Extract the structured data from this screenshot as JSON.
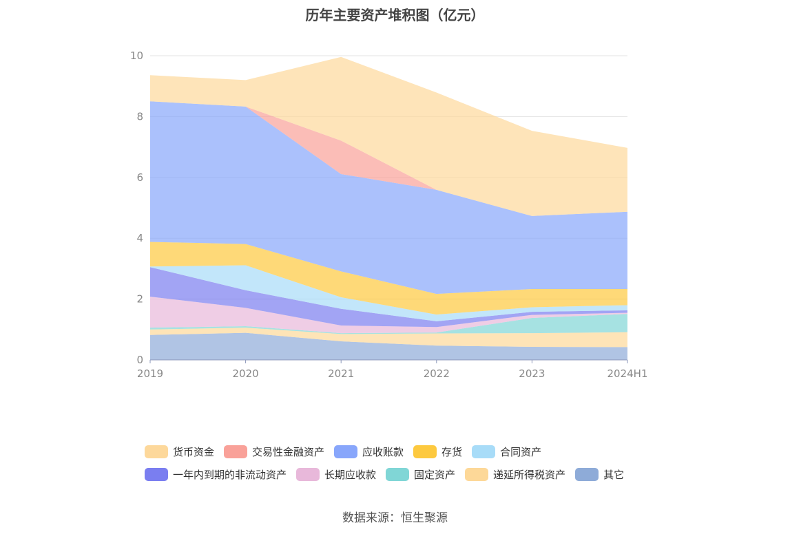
{
  "chart_data": {
    "type": "area",
    "stacked": true,
    "title": "历年主要资产堆积图（亿元）",
    "x": [
      "2019",
      "2020",
      "2021",
      "2022",
      "2023",
      "2024H1"
    ],
    "ylim": [
      0,
      10
    ],
    "yticks": [
      "0",
      "2",
      "4",
      "6",
      "8",
      "10"
    ],
    "grid": true,
    "legend_position": "bottom",
    "series": [
      {
        "name": "其它",
        "color": "#8eabd8",
        "values": [
          0.82,
          0.89,
          0.61,
          0.47,
          0.43,
          0.42
        ]
      },
      {
        "name": "递延所得税资产",
        "color": "#fdd898",
        "values": [
          0.18,
          0.17,
          0.24,
          0.4,
          0.45,
          0.49
        ]
      },
      {
        "name": "固定资产",
        "color": "#80d6d6",
        "values": [
          0.06,
          0.05,
          0.03,
          0.03,
          0.5,
          0.6
        ]
      },
      {
        "name": "长期应收款",
        "color": "#e8b8da",
        "values": [
          1.02,
          0.6,
          0.25,
          0.18,
          0.1,
          0.04
        ]
      },
      {
        "name": "一年内到期的非流动资产",
        "color": "#7a7ef0",
        "values": [
          0.97,
          0.58,
          0.55,
          0.19,
          0.1,
          0.08
        ]
      },
      {
        "name": "合同资产",
        "color": "#a8dcf8",
        "values": [
          0.02,
          0.82,
          0.38,
          0.22,
          0.15,
          0.17
        ]
      },
      {
        "name": "存货",
        "color": "#fdc93f",
        "values": [
          0.81,
          0.7,
          0.85,
          0.68,
          0.6,
          0.53
        ]
      },
      {
        "name": "应收账款",
        "color": "#88a6fb",
        "values": [
          4.62,
          4.52,
          3.2,
          3.42,
          2.4,
          2.54
        ]
      },
      {
        "name": "交易性金融资产",
        "color": "#f9a199",
        "values": [
          0.0,
          0.0,
          1.1,
          0.0,
          0.0,
          0.0
        ]
      },
      {
        "name": "货币资金",
        "color": "#fdd89b",
        "values": [
          0.86,
          0.87,
          2.75,
          3.2,
          2.8,
          2.1
        ]
      }
    ]
  },
  "legend": [
    {
      "label": "货币资金",
      "color": "#fdd89b"
    },
    {
      "label": "交易性金融资产",
      "color": "#f9a199"
    },
    {
      "label": "应收账款",
      "color": "#88a6fb"
    },
    {
      "label": "存货",
      "color": "#fdc93f"
    },
    {
      "label": "合同资产",
      "color": "#a8dcf8"
    },
    {
      "label": "一年内到期的非流动资产",
      "color": "#7a7ef0"
    },
    {
      "label": "长期应收款",
      "color": "#e8b8da"
    },
    {
      "label": "固定资产",
      "color": "#80d6d6"
    },
    {
      "label": "递延所得税资产",
      "color": "#fdd898"
    },
    {
      "label": "其它",
      "color": "#8eabd8"
    }
  ],
  "source": "数据来源：恒生聚源"
}
